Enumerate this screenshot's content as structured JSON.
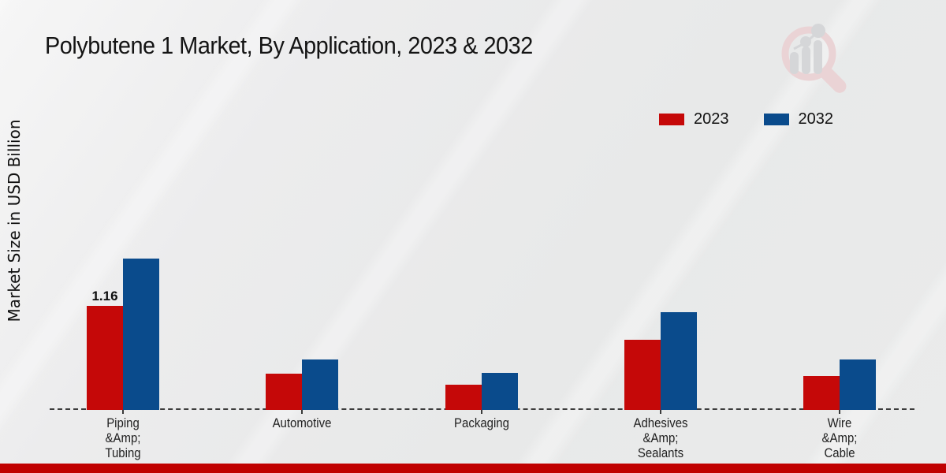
{
  "chart_data": {
    "type": "bar",
    "title": "Polybutene 1 Market, By Application, 2023 & 2032",
    "ylabel": "Market Size in USD Billion",
    "xlabel": "",
    "categories": [
      "Piping\n&Amp;\nTubing",
      "Automotive",
      "Packaging",
      "Adhesives\n&Amp;\nSealants",
      "Wire\n&Amp;\nCable"
    ],
    "series": [
      {
        "name": "2023",
        "color": "#c50808",
        "values": [
          1.16,
          0.4,
          0.28,
          0.78,
          0.38
        ]
      },
      {
        "name": "2032",
        "color": "#0a4b8c",
        "values": [
          1.69,
          0.56,
          0.41,
          1.09,
          0.56
        ]
      }
    ],
    "annotations": [
      {
        "series_index": 0,
        "category_index": 0,
        "text": "1.16"
      }
    ],
    "legend_position": "upper right",
    "grid": false,
    "ylim": [
      0,
      1.9
    ],
    "baseline_style": "dashed"
  },
  "branding": {
    "watermark_icon": "magnifier-bar-chart-logo",
    "bottom_bar_color": "#c00000",
    "watermark_ring_color": "#ead3d5",
    "watermark_bar_color": "#d5d6d8"
  },
  "axis": {
    "line_color": "#3b3b3b"
  }
}
